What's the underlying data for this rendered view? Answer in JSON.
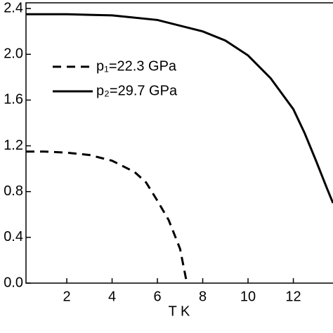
{
  "chart_data": {
    "type": "line",
    "xlabel": "T K",
    "xlim": [
      0.2,
      13.75
    ],
    "xticks": [
      2,
      4,
      6,
      8,
      10,
      12
    ],
    "ylim": [
      0,
      2.45
    ],
    "yticks": [
      {
        "value": 0,
        "label": "0.0"
      },
      0.4,
      0.8,
      1.2,
      1.6,
      {
        "value": 2,
        "label": "2.0"
      },
      2.4
    ],
    "series": [
      {
        "name": "p₁=22.3 GPa",
        "color": "#000000",
        "dash": "dashed",
        "x": [
          0.2,
          1,
          2,
          3,
          4,
          5,
          5.5,
          6,
          6.5,
          7,
          7.3
        ],
        "values": [
          1.15,
          1.15,
          1.14,
          1.12,
          1.07,
          0.97,
          0.88,
          0.72,
          0.55,
          0.3,
          0
        ]
      },
      {
        "name": "p₂=29.7 GPa",
        "color": "#000000",
        "dash": "solid",
        "x": [
          0.2,
          2,
          4,
          6,
          8,
          9,
          10,
          11,
          12,
          12.5,
          13,
          13.5,
          13.75
        ],
        "values": [
          2.35,
          2.35,
          2.34,
          2.3,
          2.2,
          2.12,
          1.99,
          1.79,
          1.52,
          1.31,
          1.07,
          0.82,
          0.7
        ]
      }
    ]
  }
}
